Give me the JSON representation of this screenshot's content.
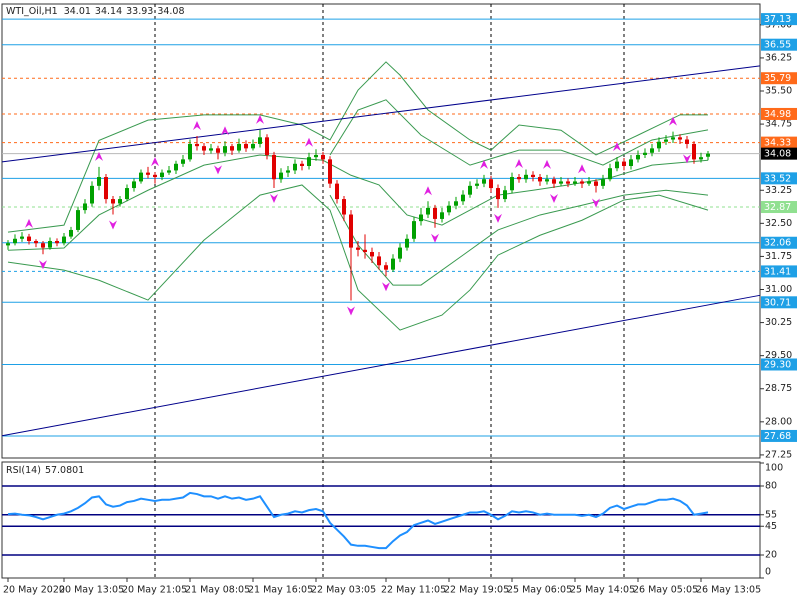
{
  "chart_data": [
    {
      "type": "candlestick",
      "title": "WTI_Oil,H1",
      "up_color": "#00a000",
      "down_color": "#e00000",
      "ylim": [
        27.18,
        37.45
      ],
      "yticks": [
        {
          "value": 37,
          "label": "37.00"
        },
        36.25,
        {
          "value": 35.5,
          "label": "35.50"
        },
        34.75,
        33.25,
        {
          "value": 32.5,
          "label": "32.50"
        },
        31.75,
        {
          "value": 31,
          "label": "31.00"
        },
        30.25,
        {
          "value": 29.5,
          "label": "29.50"
        },
        28.75,
        {
          "value": 28,
          "label": "28.00"
        },
        27.25
      ],
      "ohlc": [
        [
          32.0,
          32.12,
          31.9,
          32.05
        ],
        [
          32.05,
          32.25,
          32.0,
          32.15
        ],
        [
          32.15,
          32.3,
          32.08,
          32.2
        ],
        [
          32.2,
          32.26,
          32.02,
          32.1
        ],
        [
          32.1,
          32.14,
          31.96,
          32.05
        ],
        [
          32.05,
          32.1,
          31.8,
          31.95
        ],
        [
          31.95,
          32.18,
          31.9,
          32.1
        ],
        [
          32.1,
          32.16,
          31.98,
          32.05
        ],
        [
          32.05,
          32.28,
          32.0,
          32.2
        ],
        [
          32.2,
          32.42,
          32.15,
          32.35
        ],
        [
          32.35,
          32.88,
          32.3,
          32.8
        ],
        [
          32.8,
          33.05,
          32.72,
          32.95
        ],
        [
          32.95,
          33.45,
          32.88,
          33.35
        ],
        [
          33.35,
          33.78,
          33.25,
          33.55
        ],
        [
          33.55,
          33.62,
          32.95,
          33.05
        ],
        [
          33.05,
          33.12,
          32.7,
          32.95
        ],
        [
          32.95,
          33.12,
          32.88,
          33.05
        ],
        [
          33.05,
          33.38,
          33.0,
          33.3
        ],
        [
          33.3,
          33.52,
          33.22,
          33.45
        ],
        [
          33.45,
          33.72,
          33.4,
          33.65
        ],
        [
          33.65,
          33.78,
          33.52,
          33.6
        ],
        [
          33.6,
          33.66,
          33.4,
          33.55
        ],
        [
          33.55,
          33.72,
          33.48,
          33.65
        ],
        [
          33.65,
          33.8,
          33.6,
          33.7
        ],
        [
          33.7,
          33.92,
          33.62,
          33.85
        ],
        [
          33.85,
          34.05,
          33.78,
          33.95
        ],
        [
          33.95,
          34.4,
          33.9,
          34.3
        ],
        [
          34.3,
          34.48,
          34.15,
          34.25
        ],
        [
          34.25,
          34.32,
          34.05,
          34.15
        ],
        [
          34.15,
          34.3,
          34.08,
          34.2
        ],
        [
          34.2,
          34.26,
          33.95,
          34.1
        ],
        [
          34.1,
          34.36,
          34.02,
          34.25
        ],
        [
          34.25,
          34.3,
          34.05,
          34.15
        ],
        [
          34.15,
          34.42,
          34.1,
          34.3
        ],
        [
          34.3,
          34.38,
          34.12,
          34.2
        ],
        [
          34.2,
          34.4,
          34.15,
          34.3
        ],
        [
          34.3,
          34.62,
          34.22,
          34.45
        ],
        [
          34.45,
          34.52,
          33.95,
          34.05
        ],
        [
          34.05,
          34.12,
          33.3,
          33.5
        ],
        [
          33.5,
          33.75,
          33.42,
          33.65
        ],
        [
          33.65,
          33.8,
          33.55,
          33.7
        ],
        [
          33.7,
          33.95,
          33.62,
          33.85
        ],
        [
          33.85,
          33.92,
          33.7,
          33.8
        ],
        [
          33.8,
          34.1,
          33.72,
          34.0
        ],
        [
          34.0,
          34.18,
          33.92,
          34.05
        ],
        [
          34.05,
          34.12,
          33.85,
          33.95
        ],
        [
          33.95,
          34.02,
          33.3,
          33.4
        ],
        [
          33.4,
          33.48,
          32.95,
          33.05
        ],
        [
          33.05,
          33.12,
          32.55,
          32.7
        ],
        [
          32.7,
          32.8,
          30.75,
          31.95
        ],
        [
          31.95,
          32.1,
          31.75,
          31.9
        ],
        [
          31.9,
          32.25,
          31.7,
          31.85
        ],
        [
          31.85,
          31.95,
          31.6,
          31.75
        ],
        [
          31.75,
          31.85,
          31.45,
          31.55
        ],
        [
          31.55,
          31.62,
          31.3,
          31.45
        ],
        [
          31.45,
          31.8,
          31.4,
          31.7
        ],
        [
          31.7,
          32.05,
          31.62,
          31.95
        ],
        [
          31.95,
          32.25,
          31.88,
          32.15
        ],
        [
          32.15,
          32.65,
          32.08,
          32.55
        ],
        [
          32.55,
          32.85,
          32.45,
          32.7
        ],
        [
          32.7,
          33.0,
          32.62,
          32.85
        ],
        [
          32.85,
          32.92,
          32.4,
          32.6
        ],
        [
          32.6,
          32.85,
          32.52,
          32.75
        ],
        [
          32.75,
          33.0,
          32.68,
          32.9
        ],
        [
          32.9,
          33.1,
          32.82,
          33.0
        ],
        [
          33.0,
          33.25,
          32.92,
          33.15
        ],
        [
          33.15,
          33.45,
          33.08,
          33.35
        ],
        [
          33.35,
          33.5,
          33.28,
          33.4
        ],
        [
          33.4,
          33.6,
          33.32,
          33.5
        ],
        [
          33.5,
          33.58,
          33.2,
          33.3
        ],
        [
          33.3,
          33.38,
          32.85,
          33.05
        ],
        [
          33.05,
          33.35,
          32.98,
          33.25
        ],
        [
          33.25,
          33.65,
          33.18,
          33.55
        ],
        [
          33.55,
          33.62,
          33.42,
          33.5
        ],
        [
          33.5,
          33.72,
          33.42,
          33.6
        ],
        [
          33.6,
          33.68,
          33.45,
          33.55
        ],
        [
          33.55,
          33.62,
          33.35,
          33.45
        ],
        [
          33.45,
          33.6,
          33.38,
          33.5
        ],
        [
          33.5,
          33.56,
          33.3,
          33.4
        ],
        [
          33.4,
          33.55,
          33.35,
          33.45
        ],
        [
          33.45,
          33.52,
          33.32,
          33.4
        ],
        [
          33.4,
          33.55,
          33.35,
          33.45
        ],
        [
          33.45,
          33.5,
          33.3,
          33.4
        ],
        [
          33.4,
          33.55,
          33.35,
          33.45
        ],
        [
          33.45,
          33.5,
          33.2,
          33.35
        ],
        [
          33.35,
          33.6,
          33.28,
          33.5
        ],
        [
          33.5,
          33.85,
          33.45,
          33.75
        ],
        [
          33.75,
          34.0,
          33.68,
          33.9
        ],
        [
          33.9,
          33.98,
          33.7,
          33.8
        ],
        [
          33.8,
          34.05,
          33.72,
          33.95
        ],
        [
          33.95,
          34.15,
          33.88,
          34.05
        ],
        [
          34.05,
          34.2,
          33.98,
          34.1
        ],
        [
          34.1,
          34.3,
          34.02,
          34.2
        ],
        [
          34.2,
          34.45,
          34.12,
          34.35
        ],
        [
          34.35,
          34.5,
          34.28,
          34.4
        ],
        [
          34.4,
          34.58,
          34.32,
          34.45
        ],
        [
          34.45,
          34.52,
          34.3,
          34.4
        ],
        [
          34.4,
          34.48,
          34.2,
          34.3
        ],
        [
          34.3,
          34.36,
          33.85,
          33.95
        ],
        [
          33.95,
          34.1,
          33.88,
          34.0
        ],
        [
          34.01,
          34.14,
          33.93,
          34.08
        ]
      ],
      "bands": [
        {
          "color": "#3a9a50",
          "x": [
            0,
            8,
            13,
            20,
            28,
            36,
            42,
            46,
            50,
            54,
            56,
            60,
            66,
            69,
            73,
            79,
            84,
            90,
            96,
            100
          ],
          "values": [
            32.3,
            32.46,
            34.38,
            34.84,
            34.96,
            34.96,
            34.73,
            34.39,
            35.52,
            36.16,
            35.86,
            35.07,
            34.39,
            34.16,
            34.73,
            34.61,
            34.05,
            34.5,
            34.96,
            34.96
          ]
        },
        {
          "color": "#3a9a50",
          "x": [
            0,
            8,
            13,
            20,
            28,
            36,
            45,
            49,
            53,
            57,
            62,
            66,
            70,
            75,
            80,
            86,
            92,
            100
          ],
          "values": [
            31.89,
            31.94,
            32.69,
            33.25,
            33.82,
            34.05,
            33.93,
            33.59,
            33.37,
            32.69,
            32.46,
            32.8,
            33.14,
            33.25,
            33.37,
            33.53,
            33.82,
            33.93
          ]
        },
        {
          "color": "#3a9a50",
          "x": [
            0,
            8,
            13,
            20,
            28,
            36,
            42,
            46,
            50,
            56,
            62,
            66,
            70,
            76,
            82,
            88,
            93,
            100
          ],
          "values": [
            31.62,
            31.44,
            31.21,
            30.76,
            32.12,
            33.14,
            33.37,
            32.8,
            30.99,
            30.08,
            30.42,
            30.99,
            31.78,
            32.23,
            32.57,
            33.03,
            33.14,
            32.8
          ]
        },
        {
          "color": "#3a9a50",
          "x": [
            46,
            50,
            54,
            59,
            66,
            73,
            79,
            85,
            92,
            100
          ],
          "values": [
            34.05,
            35.07,
            35.3,
            34.5,
            33.82,
            34.16,
            34.16,
            33.82,
            34.39,
            34.62
          ]
        },
        {
          "color": "#3a9a50",
          "x": [
            46,
            50,
            55,
            59,
            65,
            70,
            76,
            82,
            88,
            94,
            100
          ],
          "values": [
            33.14,
            32.01,
            31.1,
            31.1,
            31.78,
            32.35,
            32.69,
            32.91,
            33.14,
            33.25,
            33.14
          ]
        }
      ],
      "trendlines": [
        {
          "color": "#00008b",
          "x": [
            0,
            100
          ],
          "values": [
            33.91,
            35.92
          ]
        },
        {
          "color": "#00008b",
          "x": [
            0,
            100
          ],
          "values": [
            27.71,
            30.65
          ]
        }
      ],
      "levels": [
        {
          "value": 37.13,
          "color": "#1ea0e6",
          "dash": false
        },
        {
          "value": 36.55,
          "color": "#1ea0e6",
          "dash": false
        },
        {
          "value": 35.79,
          "color": "#ff6a1a",
          "dash": true
        },
        {
          "value": 34.98,
          "color": "#ff6a1a",
          "dash": true
        },
        {
          "value": 34.33,
          "color": "#ff6a1a",
          "dash": true
        },
        {
          "value": 34.08,
          "color": "#000000",
          "dash": false
        },
        {
          "value": 33.52,
          "color": "#1ea0e6",
          "dash": false
        },
        {
          "value": 32.87,
          "color": "#90e090",
          "dash": true
        },
        {
          "value": 32.06,
          "color": "#1ea0e6",
          "dash": false
        },
        {
          "value": 31.41,
          "color": "#1ea0e6",
          "dash": true
        },
        {
          "value": 30.71,
          "color": "#1ea0e6",
          "dash": false
        },
        {
          "value": 29.3,
          "label": "29.30",
          "color": "#1ea0e6",
          "dash": false
        },
        {
          "value": 27.68,
          "color": "#1ea0e6",
          "dash": false
        }
      ],
      "fractals": {
        "color": "#e020e0",
        "up": [
          3,
          13,
          21,
          27,
          31,
          36,
          43,
          60,
          68,
          73,
          77,
          82,
          87,
          95
        ],
        "down": [
          5,
          15,
          30,
          38,
          49,
          54,
          61,
          70,
          78,
          84,
          97
        ]
      },
      "separators": [
        21,
        45,
        69,
        88
      ],
      "xticks": [
        {
          "value": 0,
          "label": "20 May 2020"
        },
        {
          "value": 8,
          "label": "20 May 13:05"
        },
        {
          "value": 17,
          "label": "20 May 21:05"
        },
        {
          "value": 26,
          "label": "21 May 08:05"
        },
        {
          "value": 35,
          "label": "21 May 16:05"
        },
        {
          "value": 44,
          "label": "22 May 03:05"
        },
        {
          "value": 54,
          "label": "22 May 11:05"
        },
        {
          "value": 63,
          "label": "22 May 19:05"
        },
        {
          "value": 72,
          "label": "25 May 06:05"
        },
        {
          "value": 81,
          "label": "25 May 14:05"
        },
        {
          "value": 90,
          "label": "26 May 05:05"
        },
        {
          "value": 99,
          "label": "26 May 13:05"
        }
      ]
    },
    {
      "type": "line",
      "title": "RSI(14)",
      "color": "#1e8fff",
      "level_color": "#000080",
      "ylim": [
        0,
        100
      ],
      "yticks": [
        100,
        80,
        55,
        45,
        20,
        0
      ],
      "levels": [
        80,
        55,
        45,
        20
      ],
      "values": [
        55.5,
        56,
        55,
        54.5,
        53,
        51,
        53,
        55,
        56,
        58,
        61,
        65,
        70,
        71,
        64,
        62,
        63,
        66,
        67,
        69,
        68,
        67,
        68,
        68,
        69,
        70,
        74,
        73,
        71,
        71,
        69,
        71,
        69,
        70,
        68,
        69,
        71,
        62,
        53,
        55,
        56,
        58,
        57,
        59,
        60,
        58,
        48,
        42,
        36,
        29,
        28,
        28,
        27,
        26,
        26,
        32,
        37,
        40,
        46,
        48,
        50,
        47,
        49,
        51,
        53,
        55,
        57,
        57,
        58,
        55,
        51,
        54,
        58,
        57,
        58,
        57,
        55,
        56,
        55,
        55,
        55,
        55,
        54,
        55,
        53,
        56,
        61,
        63,
        60,
        62,
        64,
        64,
        66,
        68,
        68,
        69,
        67,
        63,
        55,
        56,
        57.0801
      ]
    }
  ]
}
